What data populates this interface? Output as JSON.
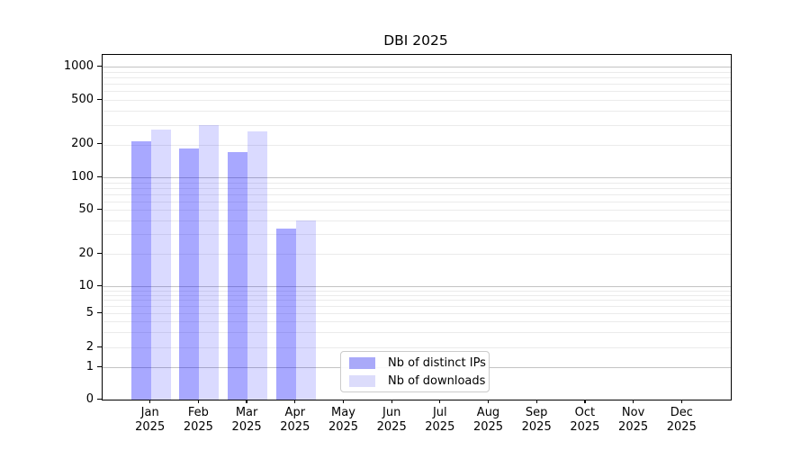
{
  "title": "DBI 2025",
  "chart_data": {
    "type": "bar",
    "title": "DBI 2025",
    "categories": [
      "Jan",
      "Feb",
      "Mar",
      "Apr",
      "May",
      "Jun",
      "Jul",
      "Aug",
      "Sep",
      "Oct",
      "Nov",
      "Dec"
    ],
    "year_label": "2025",
    "series": [
      {
        "name": "Nb of distinct IPs",
        "color": "rgba(0,0,255,0.34)",
        "legend_color": "#a9a9f9",
        "values": [
          212,
          185,
          170,
          34,
          0,
          0,
          0,
          0,
          0,
          0,
          0,
          0
        ]
      },
      {
        "name": "Nb of downloads",
        "color": "rgba(0,0,255,0.145)",
        "legend_color": "#dcdcfb",
        "values": [
          271,
          300,
          262,
          40,
          0,
          0,
          0,
          0,
          0,
          0,
          0,
          0
        ]
      }
    ],
    "xlabel": "",
    "ylabel": "",
    "yscale": "symlog",
    "ylim": [
      0,
      1277
    ],
    "ytick_values": [
      0,
      1,
      2,
      5,
      10,
      20,
      50,
      100,
      200,
      500,
      1000
    ],
    "ytick_labels": [
      "0",
      "1",
      "2",
      "5",
      "10",
      "20",
      "50",
      "100",
      "200",
      "500",
      "1000"
    ],
    "grid": true,
    "grid_major_values": [
      1,
      10,
      100,
      1000
    ],
    "grid_minor_values": [
      2,
      3,
      4,
      5,
      6,
      7,
      8,
      9,
      20,
      30,
      40,
      50,
      60,
      70,
      80,
      90,
      200,
      300,
      400,
      500,
      600,
      700,
      800,
      900
    ],
    "legend_position": "inside-bottom-center-left",
    "colors": {
      "major_grid": "#c3c3c3",
      "minor_grid": "#ebebeb",
      "spine": "#000000",
      "background": "#ffffff"
    }
  }
}
